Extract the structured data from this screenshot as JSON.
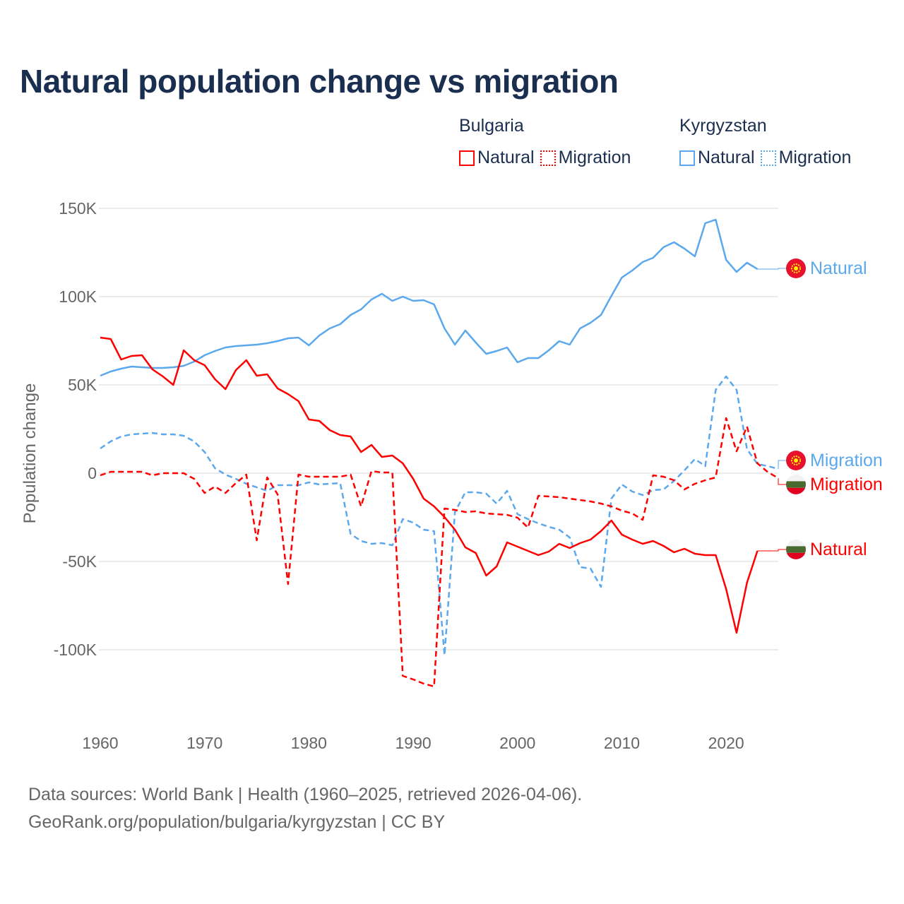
{
  "title": "Natural population change vs migration",
  "legend": {
    "groups": [
      {
        "name": "Bulgaria",
        "items": [
          {
            "label": "Natural",
            "style": "solid",
            "color": "#ff0000"
          },
          {
            "label": "Migration",
            "style": "dotted",
            "color": "#ff0000"
          }
        ]
      },
      {
        "name": "Kyrgyzstan",
        "items": [
          {
            "label": "Natural",
            "style": "solid",
            "color": "#5ba8ec"
          },
          {
            "label": "Migration",
            "style": "dotted",
            "color": "#5ba8ec"
          }
        ]
      }
    ]
  },
  "footer": {
    "line1": "Data sources: World Bank | Health (1960–2025, retrieved 2026-04-06).",
    "line2": "GeoRank.org/population/bulgaria/kyrgyzstan | CC BY"
  },
  "chart_data": {
    "type": "line",
    "title": "Natural population change vs migration",
    "xlabel": "",
    "ylabel": "Population change",
    "xlim": [
      1960,
      2025
    ],
    "ylim": [
      -125000,
      150000
    ],
    "x_ticks": [
      1960,
      1970,
      1980,
      1990,
      2000,
      2010,
      2020
    ],
    "x_tick_labels": [
      "1960",
      "1970",
      "1980",
      "1990",
      "2000",
      "2010",
      "2020"
    ],
    "y_ticks": [
      150000,
      100000,
      50000,
      0,
      -50000,
      -100000
    ],
    "y_tick_labels": [
      "150K",
      "100K",
      "50K",
      "0",
      "-50K",
      "-100K"
    ],
    "grid": true,
    "legend_position": "top-right",
    "series": [
      {
        "name": "Kyrgyzstan Natural",
        "end_label": "Natural",
        "country": "Kyrgyzstan",
        "color": "#5ba8ec",
        "dash": false,
        "start_year": 1960,
        "values": [
          55200,
          57600,
          59200,
          60400,
          60000,
          59600,
          59600,
          60000,
          60800,
          63200,
          66800,
          69200,
          71200,
          72000,
          72400,
          72800,
          73600,
          74800,
          76400,
          76800,
          72400,
          78000,
          82000,
          84400,
          89600,
          92800,
          98400,
          101600,
          97600,
          100000,
          97600,
          98000,
          95600,
          82000,
          72800,
          80800,
          74000,
          67600,
          69200,
          71200,
          62800,
          65200,
          65200,
          69600,
          74800,
          72800,
          82000,
          85200,
          89600,
          100400,
          110800,
          114800,
          119600,
          122000,
          128000,
          130800,
          127200,
          122800,
          141600,
          143600,
          120800,
          114000,
          119200,
          115600
        ]
      },
      {
        "name": "Kyrgyzstan Migration",
        "end_label": "Migration",
        "country": "Kyrgyzstan",
        "color": "#5ba8ec",
        "dash": true,
        "start_year": 1960,
        "values": [
          14000,
          18000,
          20800,
          22000,
          22400,
          22800,
          22000,
          22000,
          21200,
          18000,
          12000,
          2800,
          -800,
          -3200,
          -6000,
          -8000,
          -10000,
          -6800,
          -6800,
          -6800,
          -5200,
          -6400,
          -6000,
          -5600,
          -34400,
          -38400,
          -40000,
          -39600,
          -40800,
          -26000,
          -28000,
          -32000,
          -32800,
          -103000,
          -22000,
          -10800,
          -10800,
          -11600,
          -17200,
          -10000,
          -23200,
          -26000,
          -28400,
          -30400,
          -32000,
          -36400,
          -53200,
          -54000,
          -64400,
          -14400,
          -6400,
          -10400,
          -12400,
          -9600,
          -9200,
          -4400,
          1600,
          8000,
          4000,
          47200,
          54800,
          47200,
          13600,
          5200,
          4000,
          2400
        ]
      },
      {
        "name": "Bulgaria Migration",
        "end_label": "Migration",
        "country": "Bulgaria",
        "color": "#ff0000",
        "dash": true,
        "start_year": 1960,
        "values": [
          -1200,
          800,
          800,
          800,
          800,
          -1200,
          0,
          0,
          0,
          -3200,
          -11200,
          -7600,
          -11200,
          -5600,
          -800,
          -38000,
          -2400,
          -12000,
          -62800,
          -800,
          -2000,
          -2000,
          -2000,
          -2000,
          -800,
          -18800,
          1200,
          400,
          400,
          -114800,
          -116800,
          -119200,
          -120800,
          -20000,
          -20800,
          -22000,
          -21600,
          -22800,
          -23200,
          -23600,
          -25200,
          -30800,
          -12800,
          -13200,
          -13600,
          -14400,
          -15200,
          -16000,
          -17200,
          -18800,
          -21200,
          -22800,
          -26400,
          -1200,
          -2000,
          -4000,
          -9200,
          -6000,
          -4000,
          -2400,
          31200,
          12400,
          26400,
          5600,
          600,
          -2800
        ]
      },
      {
        "name": "Bulgaria Natural",
        "end_label": "Natural",
        "country": "Bulgaria",
        "color": "#ff0000",
        "dash": false,
        "start_year": 1960,
        "values": [
          76800,
          76000,
          64400,
          66400,
          66800,
          58800,
          54800,
          50000,
          69600,
          64000,
          61200,
          53200,
          47600,
          58400,
          64000,
          55200,
          56000,
          48000,
          44800,
          40800,
          30400,
          29600,
          24400,
          21600,
          20800,
          12000,
          16000,
          9200,
          10000,
          5600,
          -3200,
          -14400,
          -18800,
          -24800,
          -32000,
          -42000,
          -45200,
          -58000,
          -52800,
          -39200,
          -41600,
          -44000,
          -46400,
          -44400,
          -40000,
          -42400,
          -39600,
          -37600,
          -32800,
          -26800,
          -34800,
          -37600,
          -40000,
          -38400,
          -41200,
          -44800,
          -42800,
          -45600,
          -46400,
          -46400,
          -65600,
          -90400,
          -62000,
          -44000
        ]
      }
    ]
  }
}
